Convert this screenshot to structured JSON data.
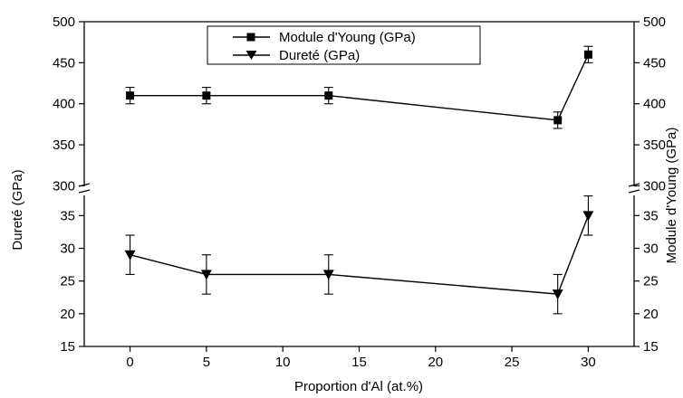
{
  "chart_data": {
    "type": "line",
    "xlabel": "Proportion d'Al (at.%)",
    "ylabel_left": "Dureté (GPa)",
    "ylabel_right": "Module d'Young (GPa)",
    "xlim": [
      -3,
      33
    ],
    "xticks": [
      0,
      5,
      10,
      15,
      20,
      25,
      30
    ],
    "ylim_lower": [
      15,
      38.5
    ],
    "yticks_lower": [
      15,
      20,
      25,
      30,
      35
    ],
    "ylim_upper": [
      295,
      500
    ],
    "yticks_upper": [
      300,
      350,
      400,
      450,
      500
    ],
    "axis_break": "between 38.5 and 295",
    "legend_position": "top-center",
    "series": [
      {
        "name": "Module d'Young (GPa)",
        "marker": "square",
        "axis": "upper",
        "x": [
          0,
          5,
          13,
          28,
          30
        ],
        "y": [
          410,
          410,
          410,
          380,
          460
        ],
        "err": [
          10,
          10,
          10,
          10,
          10
        ]
      },
      {
        "name": "Dureté (GPa)",
        "marker": "triangle-down",
        "axis": "lower",
        "x": [
          0,
          5,
          13,
          28,
          30
        ],
        "y": [
          29,
          26,
          26,
          23,
          35
        ],
        "err": [
          3,
          3,
          3,
          3,
          3
        ]
      }
    ]
  }
}
